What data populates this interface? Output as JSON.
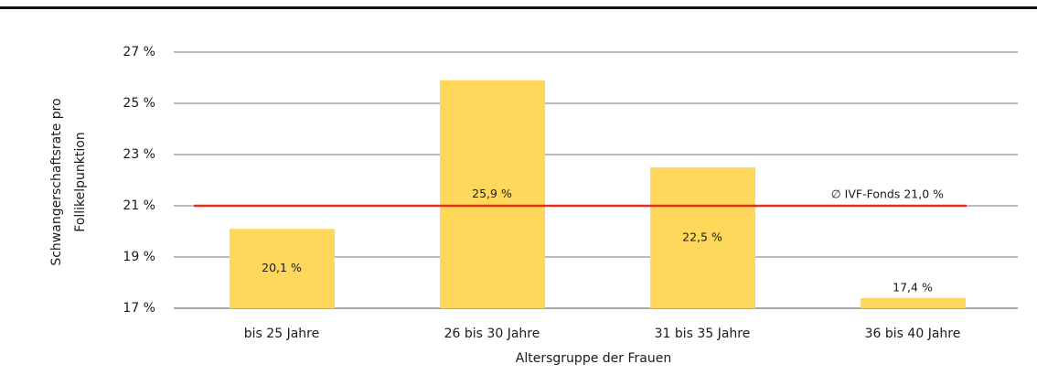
{
  "chart_data": {
    "type": "bar",
    "ylabel": [
      "Schwangerschaftsrate pro",
      "Follikelpunktion"
    ],
    "xlabel": "Altersgruppe der Frauen",
    "categories": [
      "bis 25 Jahre",
      "26 bis 30 Jahre",
      "31 bis 35 Jahre",
      "36 bis 40 Jahre"
    ],
    "values": [
      20.1,
      25.9,
      22.5,
      17.4
    ],
    "value_labels": [
      "20,1 %",
      "25,9 %",
      "22,5 %",
      "17,4 %"
    ],
    "color": "#fdd85a",
    "ylim": [
      17,
      27
    ],
    "yticks": [
      {
        "value": 17,
        "label": "17 %"
      },
      {
        "value": 19,
        "label": "19 %"
      },
      {
        "value": 21,
        "label": "21 %"
      },
      {
        "value": 23,
        "label": "23 %"
      },
      {
        "value": 25,
        "label": "25 %"
      },
      {
        "value": 27,
        "label": "27 %"
      }
    ],
    "grid": true,
    "reference_line": {
      "value": 21.0,
      "label": "∅ IVF-Fonds 21,0 %",
      "color": "#e2321f"
    }
  }
}
